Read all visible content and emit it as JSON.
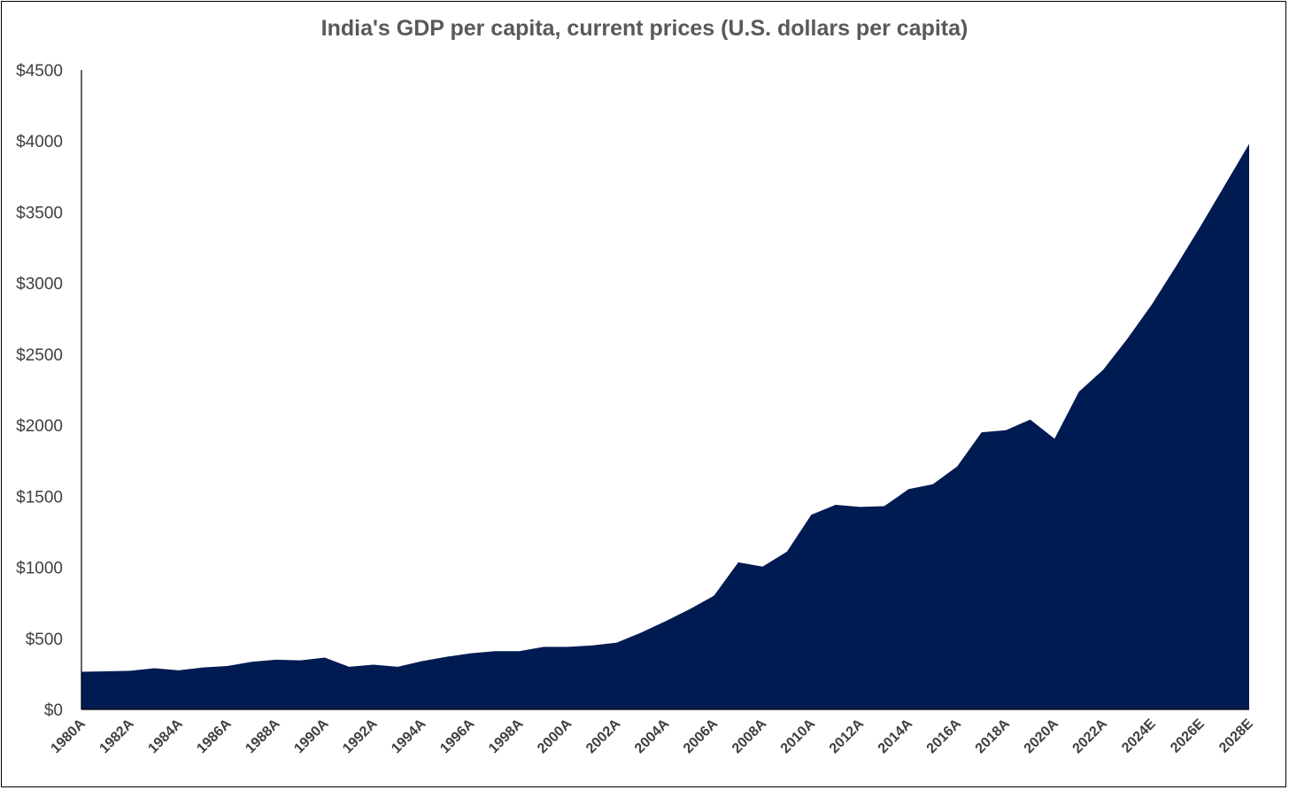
{
  "chart_data": {
    "type": "area",
    "title": "India's GDP per capita, current prices (U.S. dollars per capita)",
    "xlabel": "",
    "ylabel": "",
    "ylim": [
      0,
      4500
    ],
    "y_ticks": [
      0,
      500,
      1000,
      1500,
      2000,
      2500,
      3000,
      3500,
      4000,
      4500
    ],
    "y_tick_labels": [
      "$0",
      "$500",
      "$1000",
      "$1500",
      "$2000",
      "$2500",
      "$3000",
      "$3500",
      "$4000",
      "$4500"
    ],
    "x": [
      "1980A",
      "1981A",
      "1982A",
      "1983A",
      "1984A",
      "1985A",
      "1986A",
      "1987A",
      "1988A",
      "1989A",
      "1990A",
      "1991A",
      "1992A",
      "1993A",
      "1994A",
      "1995A",
      "1996A",
      "1997A",
      "1998A",
      "1999A",
      "2000A",
      "2001A",
      "2002A",
      "2003A",
      "2004A",
      "2005A",
      "2006A",
      "2007A",
      "2008A",
      "2009A",
      "2010A",
      "2011A",
      "2012A",
      "2013A",
      "2014A",
      "2015A",
      "2016A",
      "2017A",
      "2018A",
      "2019A",
      "2020A",
      "2021A",
      "2022A",
      "2023E",
      "2024E",
      "2025E",
      "2026E",
      "2027E",
      "2028E"
    ],
    "x_tick_labels": [
      "1980A",
      "1982A",
      "1984A",
      "1986A",
      "1988A",
      "1990A",
      "1992A",
      "1994A",
      "1996A",
      "1998A",
      "2000A",
      "2002A",
      "2004A",
      "2006A",
      "2008A",
      "2010A",
      "2012A",
      "2014A",
      "2016A",
      "2018A",
      "2020A",
      "2022A",
      "2024E",
      "2026E",
      "2028E"
    ],
    "series": [
      {
        "values": [
          265,
          268,
          272,
          290,
          275,
          295,
          305,
          335,
          350,
          345,
          365,
          300,
          315,
          300,
          340,
          370,
          395,
          410,
          410,
          440,
          440,
          450,
          470,
          540,
          620,
          705,
          800,
          1035,
          1005,
          1110,
          1370,
          1440,
          1425,
          1430,
          1550,
          1585,
          1710,
          1950,
          1965,
          2040,
          1905,
          2235,
          2390,
          2610,
          2850,
          3120,
          3400,
          3690,
          3980
        ],
        "color": "#001a52"
      }
    ],
    "grid": false,
    "legend": "none"
  }
}
